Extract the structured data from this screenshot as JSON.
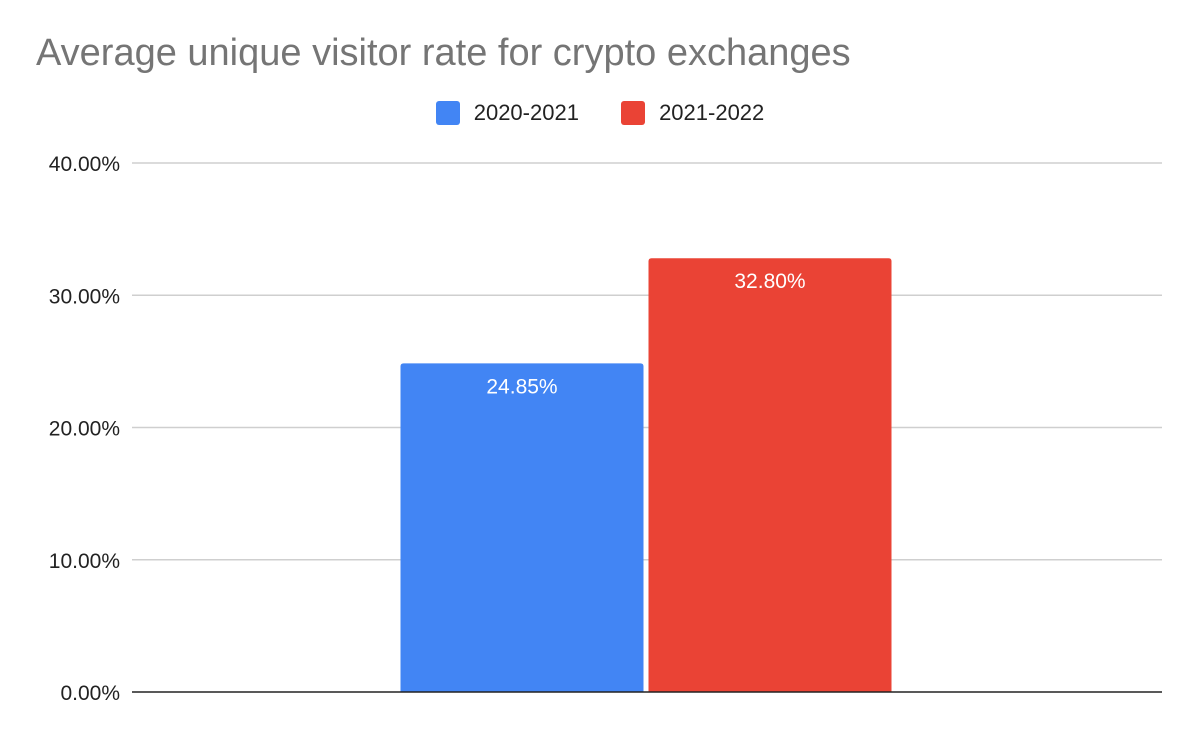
{
  "chart_data": {
    "type": "bar",
    "title": "Average unique visitor rate for crypto exchanges",
    "categories": [
      ""
    ],
    "series": [
      {
        "name": "2020-2021",
        "values": [
          24.85
        ],
        "labels": [
          "24.85%"
        ],
        "color": "#4285f4"
      },
      {
        "name": "2021-2022",
        "values": [
          32.8
        ],
        "labels": [
          "32.80%"
        ],
        "color": "#ea4335"
      }
    ],
    "ylim": [
      0,
      40
    ],
    "yticks": [
      0,
      10,
      20,
      30,
      40
    ],
    "ytick_labels": [
      "0.00%",
      "10.00%",
      "20.00%",
      "30.00%",
      "40.00%"
    ],
    "xlabel": "",
    "ylabel": "",
    "grid": true,
    "legend_position": "top-center"
  }
}
